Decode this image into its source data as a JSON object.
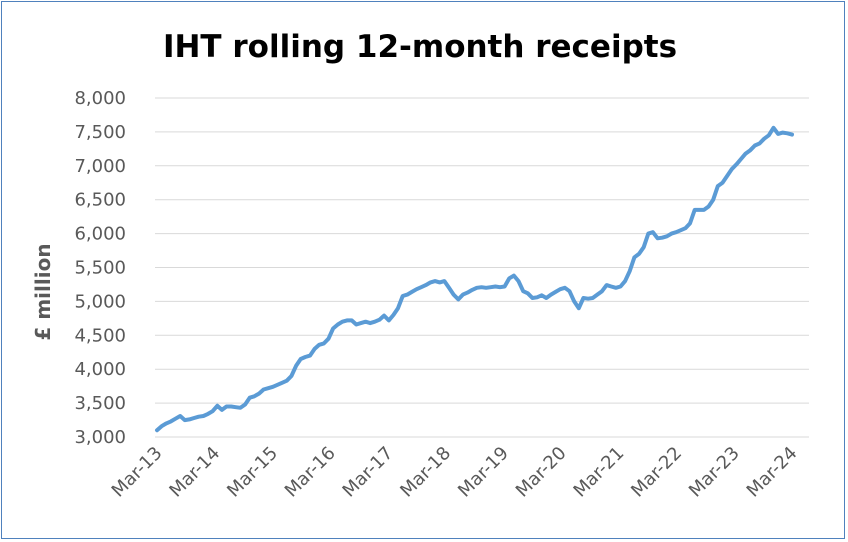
{
  "chart_data": {
    "type": "line",
    "title": "IHT rolling 12-month receipts",
    "xlabel": "",
    "ylabel": "£ million",
    "ylim": [
      3000,
      8000
    ],
    "ytick_step": 500,
    "yticks": [
      "3,000",
      "3,500",
      "4,000",
      "4,500",
      "5,000",
      "5,500",
      "6,000",
      "6,500",
      "7,000",
      "7,500",
      "8,000"
    ],
    "xticks": [
      "Mar-13",
      "Mar-14",
      "Mar-15",
      "Mar-16",
      "Mar-17",
      "Mar-18",
      "Mar-19",
      "Mar-20",
      "Mar-21",
      "Mar-22",
      "Mar-23",
      "Mar-24"
    ],
    "x_start": "Mar-13",
    "x_end": "Mar-24",
    "grid": true,
    "legend": "none",
    "colors": {
      "line": "#5b9bd5",
      "grid": "#d9d9d9",
      "border": "#4f81bd",
      "text": "#595959"
    },
    "series": [
      {
        "values": [
          3100,
          3160,
          3200,
          3230,
          3270,
          3310,
          3250,
          3260,
          3280,
          3300,
          3310,
          3340,
          3380,
          3460,
          3400,
          3450,
          3450,
          3440,
          3430,
          3480,
          3580,
          3600,
          3640,
          3700,
          3720,
          3740,
          3770,
          3800,
          3830,
          3900,
          4050,
          4150,
          4180,
          4200,
          4300,
          4360,
          4380,
          4450,
          4600,
          4660,
          4700,
          4720,
          4720,
          4660,
          4680,
          4700,
          4680,
          4700,
          4730,
          4790,
          4720,
          4800,
          4900,
          5080,
          5100,
          5140,
          5180,
          5210,
          5240,
          5280,
          5300,
          5280,
          5300,
          5200,
          5100,
          5030,
          5100,
          5130,
          5170,
          5200,
          5210,
          5200,
          5210,
          5220,
          5210,
          5220,
          5340,
          5380,
          5300,
          5150,
          5120,
          5050,
          5060,
          5090,
          5050,
          5100,
          5140,
          5180,
          5200,
          5150,
          5000,
          4900,
          5050,
          5040,
          5050,
          5100,
          5150,
          5240,
          5220,
          5200,
          5220,
          5300,
          5450,
          5650,
          5700,
          5800,
          6000,
          6020,
          5930,
          5940,
          5960,
          6000,
          6020,
          6050,
          6080,
          6150,
          6350,
          6350,
          6350,
          6400,
          6500,
          6700,
          6750,
          6850,
          6950,
          7020,
          7100,
          7180,
          7230,
          7300,
          7330,
          7400,
          7450,
          7560,
          7470,
          7490,
          7480,
          7460
        ]
      }
    ]
  }
}
